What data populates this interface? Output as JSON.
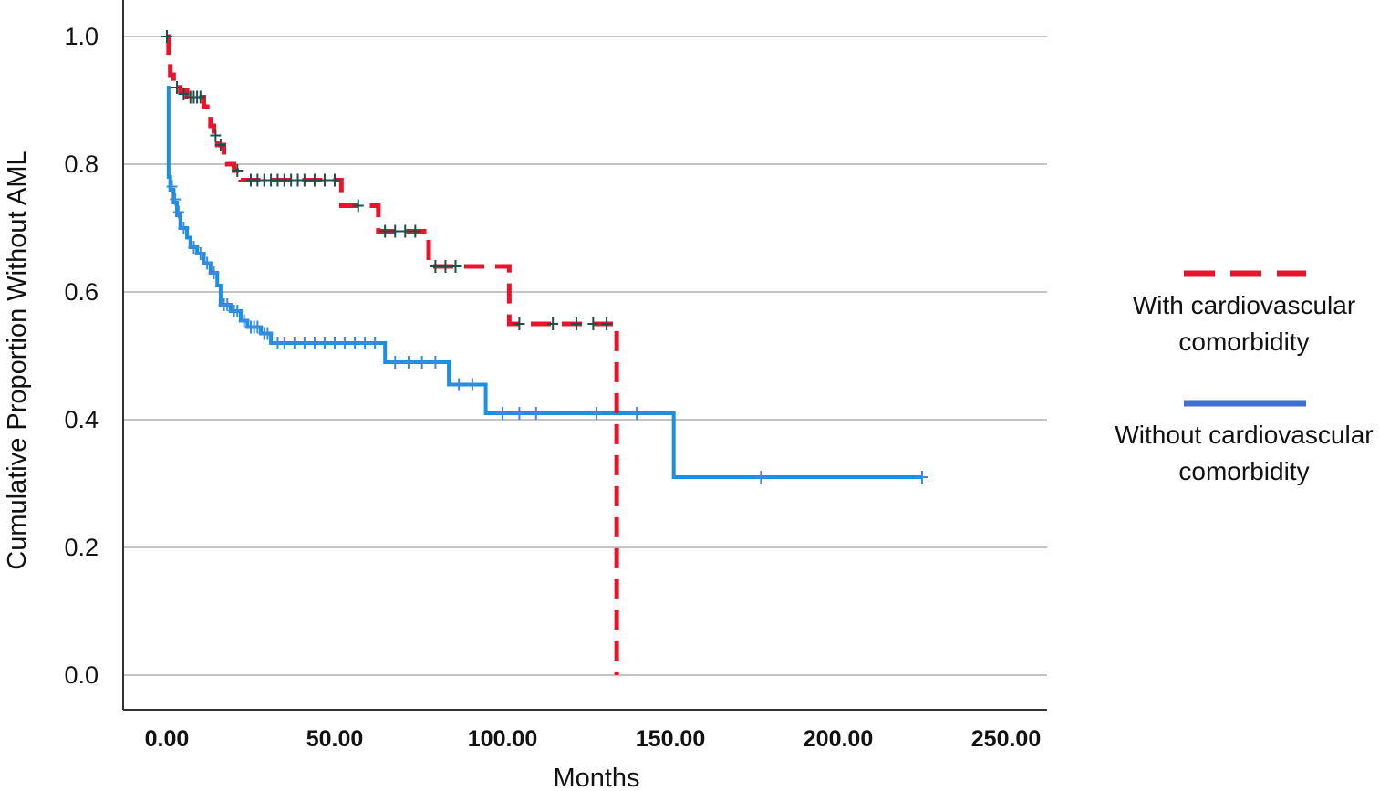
{
  "chart_data": {
    "type": "line",
    "subtype": "kaplan-meier step",
    "xlabel": "Months",
    "ylabel": "Cumulative Proportion Without AML",
    "xlim": [
      -10,
      265
    ],
    "ylim": [
      -0.05,
      1.05
    ],
    "x_ticks": [
      "0.00",
      "50.00",
      "100.00",
      "150.00",
      "200.00",
      "250.00"
    ],
    "y_ticks": [
      "0.0",
      "0.2",
      "0.4",
      "0.6",
      "0.8",
      "1.0"
    ],
    "grid": "horizontal",
    "legend_position": "right",
    "series": [
      {
        "name_lines": [
          "With cardiovascular",
          "comorbidity"
        ],
        "color": "#e8142b",
        "censor_color": "#1f4f4a",
        "style": "dashed",
        "steps": [
          [
            0,
            1.0
          ],
          [
            0.5,
            0.965
          ],
          [
            1,
            0.94
          ],
          [
            2,
            0.925
          ],
          [
            4,
            0.915
          ],
          [
            6,
            0.905
          ],
          [
            11,
            0.89
          ],
          [
            12,
            0.875
          ],
          [
            13,
            0.86
          ],
          [
            14,
            0.845
          ],
          [
            15,
            0.83
          ],
          [
            17,
            0.815
          ],
          [
            18,
            0.8
          ],
          [
            20,
            0.79
          ],
          [
            22,
            0.775
          ],
          [
            52,
            0.735
          ],
          [
            63,
            0.695
          ],
          [
            78,
            0.64
          ],
          [
            102,
            0.55
          ],
          [
            134,
            0.0
          ]
        ],
        "end_x": 134,
        "censored": [
          [
            0,
            1.0
          ],
          [
            3,
            0.92
          ],
          [
            5,
            0.91
          ],
          [
            7,
            0.905
          ],
          [
            8,
            0.905
          ],
          [
            9,
            0.905
          ],
          [
            10,
            0.905
          ],
          [
            14.5,
            0.845
          ],
          [
            16,
            0.83
          ],
          [
            21,
            0.79
          ],
          [
            25,
            0.775
          ],
          [
            27,
            0.775
          ],
          [
            29,
            0.775
          ],
          [
            31,
            0.775
          ],
          [
            33,
            0.775
          ],
          [
            35,
            0.775
          ],
          [
            37,
            0.775
          ],
          [
            39,
            0.775
          ],
          [
            41,
            0.775
          ],
          [
            44,
            0.775
          ],
          [
            47,
            0.775
          ],
          [
            50,
            0.775
          ],
          [
            57,
            0.735
          ],
          [
            65,
            0.695
          ],
          [
            68,
            0.695
          ],
          [
            71,
            0.695
          ],
          [
            74,
            0.695
          ],
          [
            80,
            0.64
          ],
          [
            83,
            0.64
          ],
          [
            86,
            0.64
          ],
          [
            105,
            0.55
          ],
          [
            115,
            0.55
          ],
          [
            122,
            0.55
          ],
          [
            127,
            0.55
          ],
          [
            131,
            0.55
          ]
        ]
      },
      {
        "name_lines": [
          "Without cardiovascular",
          "comorbidity"
        ],
        "color": "#1a8fe3",
        "legend_color": "#3f6fcf",
        "censor_color": "#3a8ae0",
        "style": "solid",
        "steps": [
          [
            0,
            0.92
          ],
          [
            0.5,
            0.78
          ],
          [
            1,
            0.76
          ],
          [
            2,
            0.74
          ],
          [
            3,
            0.72
          ],
          [
            4,
            0.7
          ],
          [
            6,
            0.685
          ],
          [
            7,
            0.67
          ],
          [
            9,
            0.66
          ],
          [
            11,
            0.645
          ],
          [
            13,
            0.63
          ],
          [
            15,
            0.61
          ],
          [
            16,
            0.58
          ],
          [
            19,
            0.57
          ],
          [
            22,
            0.555
          ],
          [
            24,
            0.545
          ],
          [
            28,
            0.535
          ],
          [
            31,
            0.52
          ],
          [
            65,
            0.49
          ],
          [
            84,
            0.455
          ],
          [
            95,
            0.41
          ],
          [
            151,
            0.31
          ]
        ],
        "end_x": 225,
        "censored": [
          [
            1.5,
            0.765
          ],
          [
            2.5,
            0.745
          ],
          [
            3.5,
            0.725
          ],
          [
            5,
            0.7
          ],
          [
            8,
            0.67
          ],
          [
            10,
            0.66
          ],
          [
            12,
            0.645
          ],
          [
            14,
            0.63
          ],
          [
            17,
            0.58
          ],
          [
            18,
            0.58
          ],
          [
            20,
            0.57
          ],
          [
            21,
            0.57
          ],
          [
            23,
            0.555
          ],
          [
            25,
            0.545
          ],
          [
            26,
            0.545
          ],
          [
            27,
            0.545
          ],
          [
            29,
            0.535
          ],
          [
            30,
            0.535
          ],
          [
            33,
            0.52
          ],
          [
            35,
            0.52
          ],
          [
            38,
            0.52
          ],
          [
            41,
            0.52
          ],
          [
            44,
            0.52
          ],
          [
            47,
            0.52
          ],
          [
            50,
            0.52
          ],
          [
            53,
            0.52
          ],
          [
            56,
            0.52
          ],
          [
            59,
            0.52
          ],
          [
            62,
            0.52
          ],
          [
            68,
            0.49
          ],
          [
            72,
            0.49
          ],
          [
            76,
            0.49
          ],
          [
            80,
            0.49
          ],
          [
            87,
            0.455
          ],
          [
            91,
            0.455
          ],
          [
            100,
            0.41
          ],
          [
            105,
            0.41
          ],
          [
            110,
            0.41
          ],
          [
            128,
            0.41
          ],
          [
            140,
            0.41
          ],
          [
            177,
            0.31
          ],
          [
            225,
            0.31
          ]
        ]
      }
    ]
  }
}
